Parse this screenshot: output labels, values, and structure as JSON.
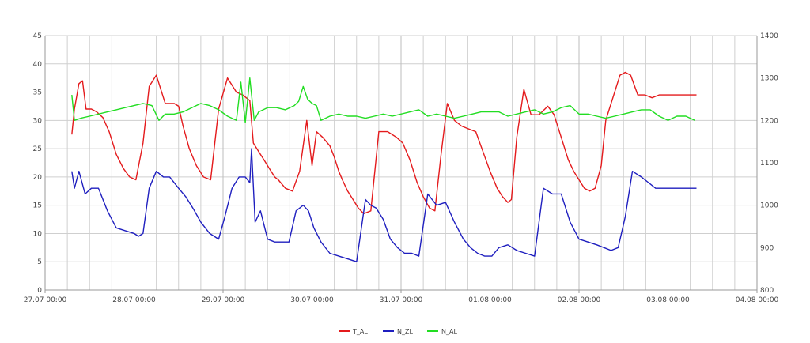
{
  "chart_data": {
    "type": "line",
    "title": "",
    "xlabel": "",
    "ylabel": "",
    "grid": true,
    "legend_position": "bottom-center",
    "xlim": [
      "27.07 00:00",
      "04.08 00:00"
    ],
    "x_ticks": [
      "27.07 00:00",
      "28.07 00:00",
      "29.07 00:00",
      "30.07 00:00",
      "31.07 00:00",
      "01.08 00:00",
      "02.08 00:00",
      "03.08 00:00",
      "04.08 00:00"
    ],
    "y_left": {
      "min": 0,
      "max": 45,
      "ticks": [
        "0",
        "5",
        "10",
        "15",
        "20",
        "25",
        "30",
        "35",
        "40",
        "45"
      ]
    },
    "y_right": {
      "min": 800,
      "max": 1400,
      "ticks": [
        "800",
        "900",
        "1000",
        "1100",
        "1200",
        "1300",
        "1400"
      ]
    },
    "series": [
      {
        "name": "T_AL",
        "color": "#e41a1c",
        "axis": "left",
        "x_days": [
          0.3,
          0.33,
          0.38,
          0.42,
          0.46,
          0.52,
          0.58,
          0.65,
          0.72,
          0.8,
          0.88,
          0.95,
          1.02,
          1.1,
          1.17,
          1.25,
          1.35,
          1.45,
          1.5,
          1.55,
          1.62,
          1.7,
          1.78,
          1.86,
          1.95,
          2.05,
          2.15,
          2.22,
          2.3,
          2.34,
          2.4,
          2.46,
          2.52,
          2.58,
          2.62,
          2.7,
          2.78,
          2.86,
          2.94,
          3.0,
          3.05,
          3.12,
          3.2,
          3.25,
          3.3,
          3.34,
          3.4,
          3.46,
          3.52,
          3.58,
          3.66,
          3.75,
          3.85,
          3.95,
          4.02,
          4.1,
          4.18,
          4.25,
          4.32,
          4.38,
          4.45,
          4.52,
          4.6,
          4.68,
          4.76,
          4.84,
          4.92,
          5.0,
          5.08,
          5.14,
          5.2,
          5.24,
          5.3,
          5.38,
          5.46,
          5.55,
          5.65,
          5.72,
          5.8,
          5.88,
          5.94,
          6.0,
          6.06,
          6.12,
          6.18,
          6.25,
          6.3,
          6.38,
          6.46,
          6.52,
          6.58,
          6.66,
          6.74,
          6.82,
          6.9,
          6.96,
          7.02,
          7.08,
          7.12,
          7.2,
          7.26,
          7.32
        ],
        "values": [
          27.5,
          32,
          36.5,
          37,
          32,
          32,
          31.5,
          30.5,
          28,
          24,
          21.5,
          20,
          19.5,
          26,
          36,
          38,
          33,
          33,
          32.5,
          29,
          25,
          22,
          20,
          19.5,
          32,
          37.5,
          35,
          34.5,
          33.5,
          26,
          24.5,
          23,
          21.5,
          20,
          19.5,
          18,
          17.5,
          21,
          30,
          22,
          28,
          27,
          25.5,
          23.5,
          21,
          19.5,
          17.5,
          16,
          14.5,
          13.5,
          14,
          28,
          28,
          27,
          26,
          23,
          19,
          16.5,
          14.5,
          14,
          24,
          33,
          30,
          29,
          28.5,
          28,
          24.5,
          21,
          18,
          16.5,
          15.5,
          16,
          27,
          35.5,
          31,
          31,
          32.5,
          31,
          27,
          23,
          21,
          19.5,
          18,
          17.5,
          18,
          22,
          30,
          34,
          38,
          38.5,
          38,
          34.5,
          34.5,
          34,
          34.5,
          34.5,
          34.5,
          34.5,
          34.5,
          34.5,
          34.5,
          34.5
        ]
      },
      {
        "name": "N_ZL",
        "color": "#1f1fbf",
        "axis": "left",
        "x_days": [
          0.3,
          0.33,
          0.38,
          0.45,
          0.52,
          0.6,
          0.7,
          0.8,
          0.9,
          1.0,
          1.05,
          1.1,
          1.17,
          1.25,
          1.33,
          1.4,
          1.5,
          1.58,
          1.66,
          1.75,
          1.85,
          1.95,
          2.02,
          2.1,
          2.18,
          2.25,
          2.3,
          2.32,
          2.36,
          2.42,
          2.5,
          2.58,
          2.66,
          2.74,
          2.82,
          2.9,
          2.96,
          3.02,
          3.1,
          3.2,
          3.3,
          3.4,
          3.5,
          3.6,
          3.66,
          3.72,
          3.8,
          3.88,
          3.96,
          4.04,
          4.12,
          4.2,
          4.3,
          4.4,
          4.5,
          4.6,
          4.7,
          4.78,
          4.86,
          4.94,
          5.02,
          5.1,
          5.2,
          5.3,
          5.4,
          5.5,
          5.6,
          5.7,
          5.8,
          5.9,
          6.0,
          6.1,
          6.2,
          6.28,
          6.36,
          6.44,
          6.52,
          6.6,
          6.7,
          6.78,
          6.86,
          6.94,
          7.02,
          7.1,
          7.18,
          7.26,
          7.32
        ],
        "values": [
          21,
          18,
          21,
          17,
          18,
          18,
          14,
          11,
          10.5,
          10,
          9.5,
          10,
          18,
          21,
          20,
          20,
          18,
          16.5,
          14.5,
          12,
          10,
          9,
          13,
          18,
          20,
          20,
          19,
          25,
          12,
          14,
          9,
          8.5,
          8.5,
          8.5,
          14,
          15,
          14,
          11,
          8.5,
          6.5,
          6,
          5.5,
          5,
          16,
          15,
          14.5,
          12.5,
          9,
          7.5,
          6.5,
          6.5,
          6,
          17,
          15,
          15.5,
          12,
          9,
          7.5,
          6.5,
          6,
          6,
          7.5,
          8,
          7,
          6.5,
          6,
          18,
          17,
          17,
          12,
          9,
          8.5,
          8,
          7.5,
          7,
          7.5,
          13,
          21,
          20,
          19,
          18,
          18,
          18,
          18,
          18,
          18,
          18
        ]
      },
      {
        "name": "N_AL",
        "color": "#22dd22",
        "axis": "right",
        "x_days": [
          0.3,
          0.33,
          0.4,
          0.5,
          0.6,
          0.7,
          0.8,
          0.9,
          1.0,
          1.1,
          1.2,
          1.28,
          1.35,
          1.45,
          1.55,
          1.65,
          1.75,
          1.85,
          1.95,
          2.05,
          2.15,
          2.2,
          2.25,
          2.3,
          2.35,
          2.4,
          2.5,
          2.6,
          2.7,
          2.8,
          2.85,
          2.9,
          2.95,
          3.0,
          3.05,
          3.1,
          3.2,
          3.3,
          3.4,
          3.5,
          3.6,
          3.7,
          3.8,
          3.9,
          4.0,
          4.1,
          4.2,
          4.3,
          4.4,
          4.5,
          4.6,
          4.7,
          4.8,
          4.9,
          5.0,
          5.1,
          5.2,
          5.3,
          5.4,
          5.5,
          5.6,
          5.7,
          5.8,
          5.9,
          6.0,
          6.1,
          6.2,
          6.3,
          6.4,
          6.5,
          6.6,
          6.7,
          6.8,
          6.9,
          7.0,
          7.1,
          7.2,
          7.3
        ],
        "values": [
          1260,
          1200,
          1205,
          1210,
          1215,
          1220,
          1225,
          1230,
          1235,
          1240,
          1235,
          1200,
          1215,
          1215,
          1220,
          1230,
          1240,
          1235,
          1225,
          1210,
          1200,
          1290,
          1195,
          1300,
          1200,
          1220,
          1230,
          1230,
          1225,
          1235,
          1245,
          1280,
          1250,
          1240,
          1235,
          1200,
          1210,
          1215,
          1210,
          1210,
          1205,
          1210,
          1215,
          1210,
          1215,
          1220,
          1225,
          1210,
          1215,
          1210,
          1205,
          1210,
          1215,
          1220,
          1220,
          1220,
          1210,
          1215,
          1220,
          1225,
          1215,
          1220,
          1230,
          1235,
          1215,
          1215,
          1210,
          1205,
          1210,
          1215,
          1220,
          1225,
          1225,
          1210,
          1200,
          1210,
          1210,
          1200
        ]
      }
    ]
  }
}
